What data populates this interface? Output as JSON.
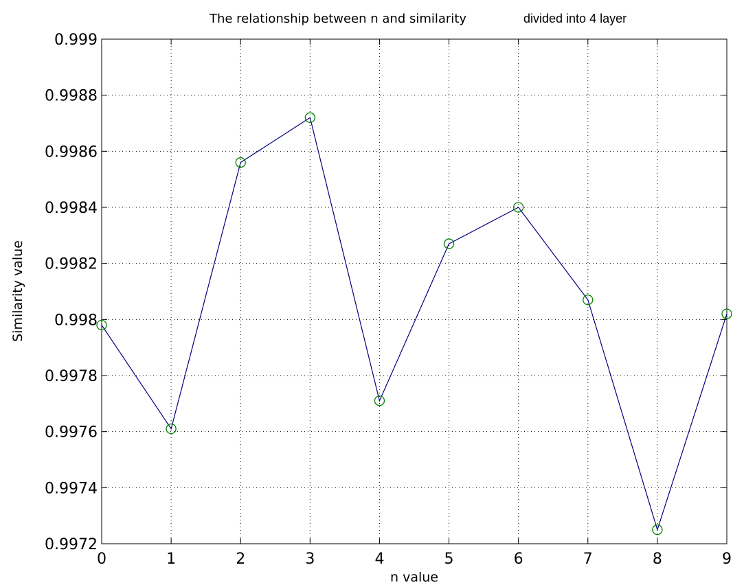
{
  "chart_data": {
    "type": "line",
    "title": "The relationship between n and similarity",
    "title_note": "divided into 4 layer",
    "xlabel": "n value",
    "ylabel": "Similarity value",
    "xlim": [
      0,
      9
    ],
    "ylim": [
      0.9972,
      0.999
    ],
    "xticks": [
      "0",
      "1",
      "2",
      "3",
      "4",
      "5",
      "6",
      "7",
      "8",
      "9"
    ],
    "yticks": [
      "0.9972",
      "0.9974",
      "0.9976",
      "0.9978",
      "0.998",
      "0.9982",
      "0.9984",
      "0.9986",
      "0.9988",
      "0.999"
    ],
    "grid": true,
    "series": [
      {
        "x": [
          0,
          1,
          2,
          3,
          4,
          5,
          6,
          7,
          8,
          9
        ],
        "values": [
          0.99798,
          0.99761,
          0.99856,
          0.99872,
          0.99771,
          0.99827,
          0.9984,
          0.99807,
          0.99725,
          0.99802
        ],
        "line_color": "#000080",
        "marker": "circle",
        "marker_color": "#008000"
      }
    ]
  }
}
